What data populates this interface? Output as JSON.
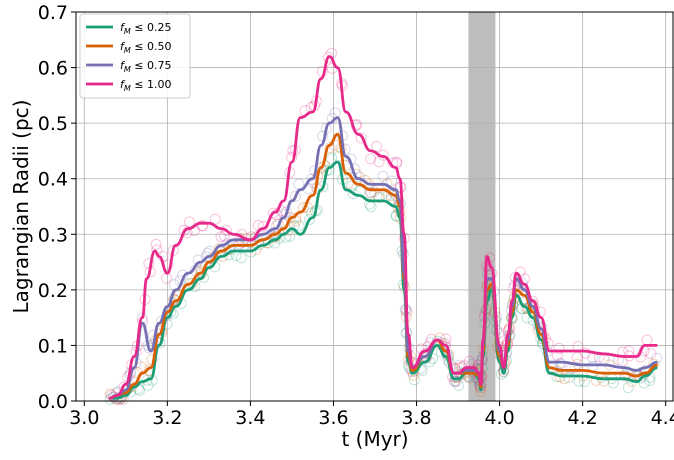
{
  "chart_data": {
    "type": "line",
    "title": "",
    "xlabel": "t (Myr)",
    "ylabel": "Lagrangian Radii (pc)",
    "xlim": [
      2.98,
      4.42
    ],
    "ylim": [
      0.0,
      0.7
    ],
    "xticks": [
      "3.0",
      "3.2",
      "3.4",
      "3.6",
      "3.8",
      "4.0",
      "4.2",
      "4.4"
    ],
    "yticks": [
      "0.0",
      "0.1",
      "0.2",
      "0.3",
      "0.4",
      "0.5",
      "0.6",
      "0.7"
    ],
    "grid": true,
    "legend_position": "top-left",
    "shaded_band": {
      "x_start": 3.925,
      "x_end": 3.99,
      "color": "#bdbdbd"
    },
    "series": [
      {
        "name_main": "f",
        "name_sub": "M",
        "name_rest": " ≤  0.25",
        "color": "#1b9e77",
        "x": [
          3.06,
          3.08,
          3.1,
          3.12,
          3.14,
          3.16,
          3.18,
          3.2,
          3.22,
          3.25,
          3.28,
          3.3,
          3.33,
          3.36,
          3.4,
          3.43,
          3.46,
          3.48,
          3.5,
          3.52,
          3.55,
          3.57,
          3.59,
          3.61,
          3.63,
          3.66,
          3.69,
          3.72,
          3.75,
          3.76,
          3.77,
          3.78,
          3.79,
          3.82,
          3.85,
          3.87,
          3.89,
          3.9,
          3.92,
          3.94,
          3.95,
          3.955,
          3.96,
          3.97,
          3.98,
          4.0,
          4.01,
          4.02,
          4.03,
          4.04,
          4.06,
          4.08,
          4.1,
          4.12,
          4.15,
          4.2,
          4.25,
          4.3,
          4.33,
          4.35,
          4.38
        ],
        "y": [
          0.005,
          0.005,
          0.01,
          0.025,
          0.035,
          0.04,
          0.1,
          0.15,
          0.17,
          0.2,
          0.22,
          0.24,
          0.26,
          0.27,
          0.27,
          0.28,
          0.29,
          0.3,
          0.31,
          0.3,
          0.33,
          0.38,
          0.42,
          0.43,
          0.38,
          0.37,
          0.36,
          0.36,
          0.35,
          0.33,
          0.2,
          0.07,
          0.05,
          0.07,
          0.1,
          0.08,
          0.04,
          0.04,
          0.05,
          0.05,
          0.04,
          0.02,
          0.08,
          0.18,
          0.2,
          0.07,
          0.05,
          0.09,
          0.15,
          0.19,
          0.17,
          0.15,
          0.11,
          0.05,
          0.045,
          0.045,
          0.04,
          0.04,
          0.035,
          0.045,
          0.06
        ]
      },
      {
        "name_main": "f",
        "name_sub": "M",
        "name_rest": " ≤  0.50",
        "color": "#d95f02",
        "x": [
          3.06,
          3.08,
          3.1,
          3.12,
          3.14,
          3.16,
          3.18,
          3.2,
          3.22,
          3.25,
          3.28,
          3.3,
          3.33,
          3.36,
          3.4,
          3.43,
          3.46,
          3.48,
          3.5,
          3.52,
          3.55,
          3.57,
          3.59,
          3.61,
          3.63,
          3.66,
          3.69,
          3.72,
          3.75,
          3.76,
          3.77,
          3.78,
          3.79,
          3.82,
          3.85,
          3.87,
          3.89,
          3.9,
          3.92,
          3.94,
          3.95,
          3.955,
          3.96,
          3.97,
          3.98,
          4.0,
          4.01,
          4.02,
          4.03,
          4.04,
          4.06,
          4.08,
          4.1,
          4.12,
          4.15,
          4.2,
          4.25,
          4.3,
          4.33,
          4.35,
          4.38
        ],
        "y": [
          0.005,
          0.01,
          0.015,
          0.03,
          0.05,
          0.06,
          0.12,
          0.16,
          0.18,
          0.21,
          0.23,
          0.25,
          0.27,
          0.28,
          0.28,
          0.29,
          0.3,
          0.31,
          0.33,
          0.34,
          0.37,
          0.42,
          0.46,
          0.48,
          0.41,
          0.39,
          0.38,
          0.38,
          0.37,
          0.35,
          0.22,
          0.08,
          0.055,
          0.08,
          0.11,
          0.09,
          0.05,
          0.05,
          0.05,
          0.05,
          0.045,
          0.025,
          0.09,
          0.2,
          0.21,
          0.08,
          0.06,
          0.1,
          0.16,
          0.2,
          0.19,
          0.16,
          0.12,
          0.06,
          0.055,
          0.055,
          0.05,
          0.05,
          0.045,
          0.05,
          0.065
        ]
      },
      {
        "name_main": "f",
        "name_sub": "M",
        "name_rest": " ≤  0.75",
        "color": "#7570b3",
        "x": [
          3.06,
          3.08,
          3.1,
          3.12,
          3.14,
          3.16,
          3.18,
          3.2,
          3.22,
          3.25,
          3.28,
          3.3,
          3.33,
          3.36,
          3.4,
          3.43,
          3.46,
          3.48,
          3.5,
          3.52,
          3.55,
          3.57,
          3.59,
          3.61,
          3.63,
          3.66,
          3.69,
          3.72,
          3.75,
          3.76,
          3.77,
          3.78,
          3.79,
          3.82,
          3.85,
          3.87,
          3.89,
          3.9,
          3.92,
          3.94,
          3.95,
          3.955,
          3.96,
          3.97,
          3.98,
          4.0,
          4.01,
          4.02,
          4.03,
          4.04,
          4.06,
          4.08,
          4.1,
          4.12,
          4.15,
          4.2,
          4.25,
          4.3,
          4.33,
          4.35,
          4.38
        ],
        "y": [
          0.005,
          0.01,
          0.02,
          0.06,
          0.14,
          0.09,
          0.14,
          0.17,
          0.2,
          0.23,
          0.25,
          0.26,
          0.28,
          0.29,
          0.29,
          0.3,
          0.31,
          0.33,
          0.36,
          0.38,
          0.4,
          0.46,
          0.5,
          0.51,
          0.44,
          0.4,
          0.39,
          0.39,
          0.38,
          0.36,
          0.23,
          0.09,
          0.06,
          0.08,
          0.11,
          0.1,
          0.05,
          0.05,
          0.055,
          0.055,
          0.05,
          0.03,
          0.1,
          0.22,
          0.22,
          0.09,
          0.06,
          0.11,
          0.17,
          0.22,
          0.2,
          0.17,
          0.13,
          0.07,
          0.07,
          0.065,
          0.065,
          0.06,
          0.055,
          0.06,
          0.07
        ]
      },
      {
        "name_main": "f",
        "name_sub": "M",
        "name_rest": " ≤  1.00",
        "color": "#e7298a",
        "x": [
          3.06,
          3.08,
          3.1,
          3.12,
          3.14,
          3.15,
          3.17,
          3.18,
          3.2,
          3.22,
          3.25,
          3.28,
          3.3,
          3.33,
          3.36,
          3.4,
          3.43,
          3.46,
          3.48,
          3.5,
          3.52,
          3.55,
          3.57,
          3.59,
          3.61,
          3.63,
          3.66,
          3.69,
          3.72,
          3.75,
          3.76,
          3.77,
          3.78,
          3.79,
          3.82,
          3.85,
          3.87,
          3.89,
          3.9,
          3.92,
          3.94,
          3.95,
          3.955,
          3.96,
          3.97,
          3.98,
          4.0,
          4.01,
          4.02,
          4.03,
          4.04,
          4.06,
          4.08,
          4.1,
          4.12,
          4.15,
          4.2,
          4.25,
          4.3,
          4.33,
          4.35,
          4.38
        ],
        "y": [
          0.005,
          0.01,
          0.03,
          0.08,
          0.15,
          0.22,
          0.27,
          0.26,
          0.23,
          0.28,
          0.31,
          0.32,
          0.32,
          0.31,
          0.3,
          0.29,
          0.31,
          0.34,
          0.36,
          0.43,
          0.51,
          0.52,
          0.58,
          0.62,
          0.6,
          0.52,
          0.48,
          0.45,
          0.44,
          0.42,
          0.4,
          0.3,
          0.12,
          0.06,
          0.09,
          0.11,
          0.1,
          0.05,
          0.05,
          0.06,
          0.06,
          0.05,
          0.03,
          0.11,
          0.26,
          0.24,
          0.1,
          0.06,
          0.12,
          0.18,
          0.23,
          0.21,
          0.18,
          0.15,
          0.09,
          0.09,
          0.09,
          0.085,
          0.08,
          0.08,
          0.1,
          0.1
        ]
      }
    ]
  }
}
